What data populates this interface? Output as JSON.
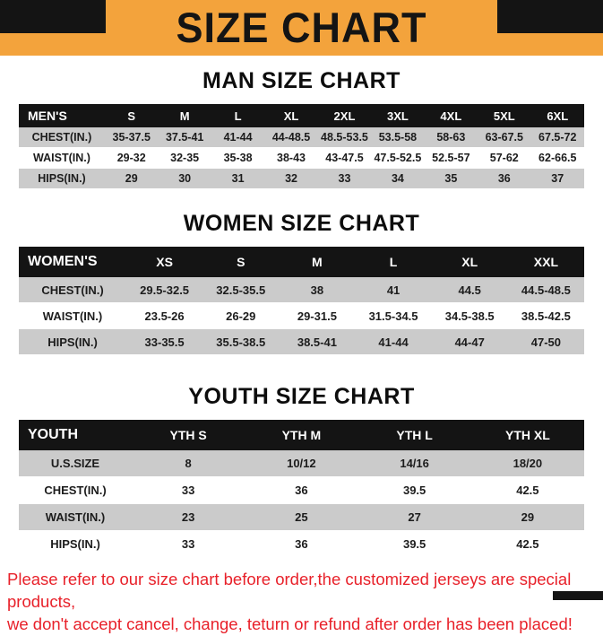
{
  "title": "SIZE CHART",
  "colors": {
    "banner_orange": "#F3A33C",
    "header_black": "#141414",
    "row_gray": "#CBCBCB",
    "warning_red": "#E8212A"
  },
  "sections": {
    "men": {
      "heading": "MAN SIZE CHART",
      "table": {
        "header": [
          "MEN'S",
          "S",
          "M",
          "L",
          "XL",
          "2XL",
          "3XL",
          "4XL",
          "5XL",
          "6XL"
        ],
        "rows": [
          [
            "CHEST(IN.)",
            "35-37.5",
            "37.5-41",
            "41-44",
            "44-48.5",
            "48.5-53.5",
            "53.5-58",
            "58-63",
            "63-67.5",
            "67.5-72"
          ],
          [
            "WAIST(IN.)",
            "29-32",
            "32-35",
            "35-38",
            "38-43",
            "43-47.5",
            "47.5-52.5",
            "52.5-57",
            "57-62",
            "62-66.5"
          ],
          [
            "HIPS(IN.)",
            "29",
            "30",
            "31",
            "32",
            "33",
            "34",
            "35",
            "36",
            "37"
          ]
        ]
      }
    },
    "women": {
      "heading": "WOMEN SIZE CHART",
      "table": {
        "header": [
          "WOMEN'S",
          "XS",
          "S",
          "M",
          "L",
          "XL",
          "XXL"
        ],
        "rows": [
          [
            "CHEST(IN.)",
            "29.5-32.5",
            "32.5-35.5",
            "38",
            "41",
            "44.5",
            "44.5-48.5"
          ],
          [
            "WAIST(IN.)",
            "23.5-26",
            "26-29",
            "29-31.5",
            "31.5-34.5",
            "34.5-38.5",
            "38.5-42.5"
          ],
          [
            "HIPS(IN.)",
            "33-35.5",
            "35.5-38.5",
            "38.5-41",
            "41-44",
            "44-47",
            "47-50"
          ]
        ]
      }
    },
    "youth": {
      "heading": "YOUTH SIZE CHART",
      "table": {
        "header": [
          "YOUTH",
          "YTH S",
          "YTH M",
          "YTH L",
          "YTH XL"
        ],
        "rows": [
          [
            "U.S.SIZE",
            "8",
            "10/12",
            "14/16",
            "18/20"
          ],
          [
            "CHEST(IN.)",
            "33",
            "36",
            "39.5",
            "42.5"
          ],
          [
            "WAIST(IN.)",
            "23",
            "25",
            "27",
            "29"
          ],
          [
            "HIPS(IN.)",
            "33",
            "36",
            "39.5",
            "42.5"
          ]
        ]
      }
    }
  },
  "footer": {
    "line1": "Please refer to our size chart before order,the customized jerseys are special products,",
    "line2": "we don't accept cancel, change, teturn or refund after order has been placed!"
  }
}
